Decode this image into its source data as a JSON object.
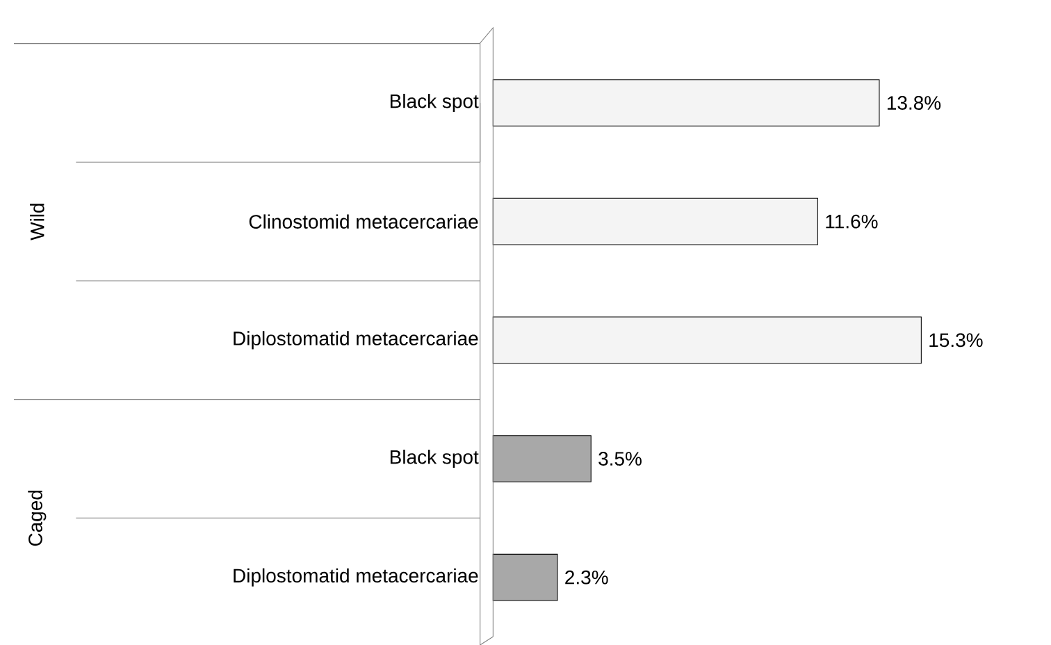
{
  "chart_data": {
    "type": "bar",
    "orientation": "horizontal",
    "categories": [
      "Black spot",
      "Clinostomid metacercariae",
      "Diplostomatid metacercariae",
      "Black spot",
      "Diplostomatid metacercariae"
    ],
    "values": [
      13.8,
      11.6,
      15.3,
      3.5,
      2.3
    ],
    "colors": [
      "#f4f4f4",
      "#f4f4f4",
      "#f4f4f4",
      "#a8a8a8",
      "#a8a8a8"
    ],
    "value_labels": [
      "13.8%",
      "11.6%",
      "15.3%",
      "3.5%",
      "2.3%"
    ],
    "annotations": [
      "Wild",
      "Caged"
    ]
  }
}
